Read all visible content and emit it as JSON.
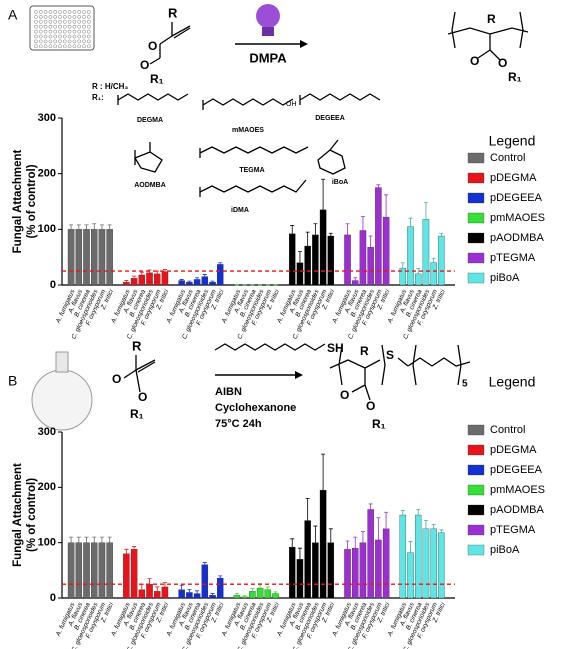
{
  "chart_data": [
    {
      "type": "bar",
      "panel": "A",
      "ylabel": [
        "Fungal Attachment",
        "(% of control)"
      ],
      "legend_title": "Legend",
      "categories": [
        "A. fumigatus",
        "A. flavus",
        "B. cinerea",
        "C. gloeosporioides",
        "F. oxysporum",
        "Z. tritici"
      ],
      "ylim": [
        0,
        300
      ],
      "yticks": [
        0,
        100,
        200,
        300
      ],
      "reference_line": {
        "value": 25,
        "color": "#e8141b"
      },
      "series": [
        {
          "name": "Control",
          "color": "#6b6b6b",
          "values": [
            100,
            100,
            100,
            100,
            100,
            100
          ],
          "errors": [
            8,
            8,
            8,
            10,
            8,
            8
          ]
        },
        {
          "name": "pDEGMA",
          "color": "#e8141b",
          "values": [
            5,
            12,
            18,
            22,
            20,
            24
          ],
          "errors": [
            3,
            4,
            5,
            5,
            5,
            4
          ]
        },
        {
          "name": "pDEGEEA",
          "color": "#1530d0",
          "values": [
            8,
            5,
            10,
            15,
            5,
            37
          ],
          "errors": [
            2,
            2,
            3,
            4,
            2,
            3
          ]
        },
        {
          "name": "pmMAOES",
          "color": "#33e033",
          "values": [
            0,
            0,
            0,
            0,
            0,
            0
          ],
          "errors": [
            0,
            0,
            0,
            0,
            0,
            0
          ]
        },
        {
          "name": "pAODMBA",
          "color": "#000000",
          "values": [
            92,
            40,
            70,
            90,
            135,
            88
          ],
          "errors": [
            15,
            20,
            25,
            20,
            55,
            5
          ]
        },
        {
          "name": "pTEGMA",
          "color": "#9b2fcf",
          "values": [
            90,
            8,
            98,
            68,
            175,
            122
          ],
          "errors": [
            20,
            5,
            25,
            20,
            5,
            40
          ]
        },
        {
          "name": "piBoA",
          "color": "#5ee6e6",
          "values": [
            30,
            105,
            20,
            118,
            40,
            88
          ],
          "errors": [
            10,
            15,
            10,
            30,
            8,
            5
          ]
        }
      ]
    },
    {
      "type": "bar",
      "panel": "B",
      "ylabel": [
        "Fungal Attachment",
        "(% of control)"
      ],
      "legend_title": "Legend",
      "categories": [
        "A. fumigatus",
        "A. flavus",
        "B. cinerea",
        "C. gloeosporioides",
        "F. oxysporum",
        "Z. tritici"
      ],
      "ylim": [
        0,
        300
      ],
      "yticks": [
        0,
        100,
        200,
        300
      ],
      "reference_line": {
        "value": 25,
        "color": "#e8141b"
      },
      "series": [
        {
          "name": "Control",
          "color": "#6b6b6b",
          "values": [
            100,
            100,
            100,
            100,
            100,
            100
          ],
          "errors": [
            10,
            10,
            10,
            10,
            10,
            10
          ]
        },
        {
          "name": "pDEGMA",
          "color": "#e8141b",
          "values": [
            80,
            88,
            15,
            25,
            12,
            20
          ],
          "errors": [
            8,
            5,
            10,
            10,
            8,
            8
          ]
        },
        {
          "name": "pDEGEEA",
          "color": "#1530d0",
          "values": [
            15,
            10,
            8,
            60,
            5,
            36
          ],
          "errors": [
            8,
            5,
            5,
            4,
            3,
            4
          ]
        },
        {
          "name": "pmMAOES",
          "color": "#33e033",
          "values": [
            5,
            2,
            12,
            18,
            15,
            8
          ],
          "errors": [
            3,
            2,
            5,
            8,
            5,
            3
          ]
        },
        {
          "name": "pAODMBA",
          "color": "#000000",
          "values": [
            92,
            70,
            140,
            100,
            195,
            100
          ],
          "errors": [
            15,
            20,
            40,
            30,
            65,
            25
          ]
        },
        {
          "name": "pTEGMA",
          "color": "#9b2fcf",
          "values": [
            88,
            90,
            100,
            160,
            105,
            125
          ],
          "errors": [
            15,
            20,
            20,
            10,
            40,
            30
          ]
        },
        {
          "name": "piBoA",
          "color": "#5ee6e6",
          "values": [
            150,
            82,
            150,
            125,
            125,
            118
          ],
          "errors": [
            8,
            20,
            10,
            15,
            8,
            5
          ]
        }
      ]
    }
  ],
  "scheme_a": {
    "r": "R",
    "o": "O",
    "r1": "R₁",
    "reagent": "DMPA",
    "r_def": "R : H/CH₃",
    "r1_def": "R₁:",
    "monomers": [
      "DEGMA",
      "mMAOES",
      "DEGEEA",
      "AODMBA",
      "TEGMA",
      "iDMA",
      "iBoA"
    ],
    "oh": "OH"
  },
  "scheme_b": {
    "r": "R",
    "o": "O",
    "r1": "R₁",
    "sh": "SH",
    "s": "S",
    "repeat": "5",
    "reagents": [
      "AIBN",
      "Cyclohexanone",
      "75°C 24h"
    ]
  }
}
